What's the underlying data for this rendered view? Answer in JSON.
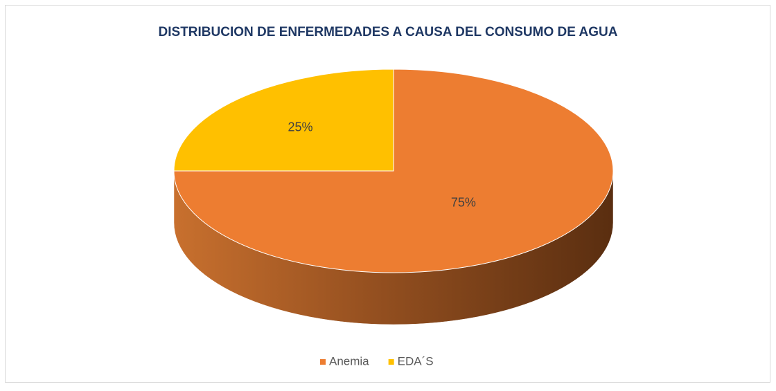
{
  "chart_data": {
    "type": "pie",
    "title": "DISTRIBUCION DE ENFERMEDADES A CAUSA DEL CONSUMO DE AGUA",
    "categories": [
      "Anemia",
      "EDA´S"
    ],
    "values": [
      75,
      25
    ],
    "value_labels": [
      "75%",
      "25%"
    ],
    "colors": [
      "#ED7D31",
      "#FFC000"
    ],
    "legend": "bottom",
    "three_d": true
  }
}
